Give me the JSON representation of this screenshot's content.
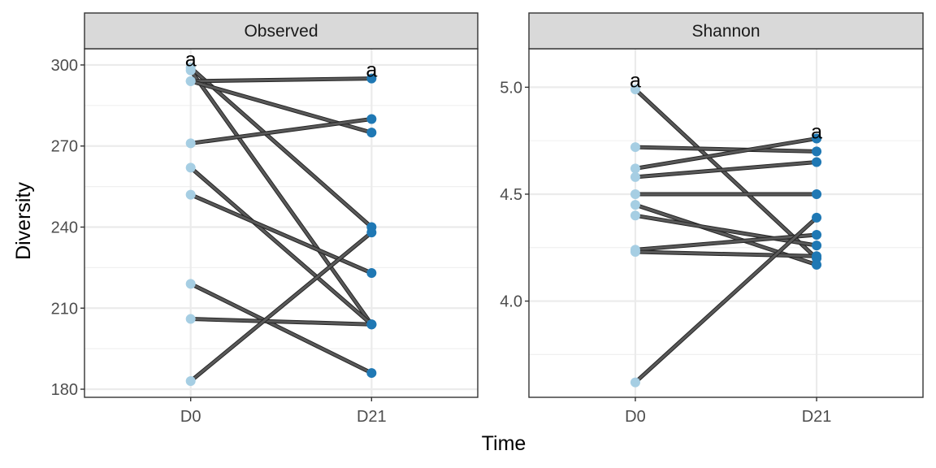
{
  "chart_data": {
    "type": "line",
    "xlabel": "Time",
    "ylabel": "Diversity",
    "categories": [
      "D0",
      "D21"
    ],
    "grid": true,
    "colors": {
      "D0": "#a6cee3",
      "D21": "#1f78b4",
      "line": "#595959",
      "strip": "#d9d9d9"
    },
    "panels": [
      {
        "name": "Observed",
        "ylim": [
          177,
          306
        ],
        "yticks": [
          180,
          210,
          240,
          270,
          300
        ],
        "ytick_labels": [
          "180",
          "210",
          "240",
          "270",
          "300"
        ],
        "annotations": [
          {
            "x": "D0",
            "y": 302,
            "text": "a"
          },
          {
            "x": "D21",
            "y": 298,
            "text": "a"
          }
        ],
        "pairs": [
          [
            299,
            240
          ],
          [
            298,
            204
          ],
          [
            294,
            295
          ],
          [
            294,
            275
          ],
          [
            271,
            280
          ],
          [
            262,
            204
          ],
          [
            252,
            223
          ],
          [
            219,
            186
          ],
          [
            206,
            204
          ],
          [
            183,
            238
          ]
        ]
      },
      {
        "name": "Shannon",
        "ylim": [
          3.55,
          5.18
        ],
        "yticks": [
          4.0,
          4.5,
          5.0
        ],
        "ytick_labels": [
          "4.0",
          "4.5",
          "5.0"
        ],
        "annotations": [
          {
            "x": "D0",
            "y": 5.03,
            "text": "a"
          },
          {
            "x": "D21",
            "y": 4.79,
            "text": "a"
          }
        ],
        "pairs": [
          [
            4.99,
            4.2
          ],
          [
            4.72,
            4.7
          ],
          [
            4.62,
            4.76
          ],
          [
            4.58,
            4.65
          ],
          [
            4.5,
            4.5
          ],
          [
            4.45,
            4.17
          ],
          [
            4.4,
            4.26
          ],
          [
            4.24,
            4.31
          ],
          [
            4.23,
            4.21
          ],
          [
            3.62,
            4.39
          ]
        ]
      }
    ]
  }
}
